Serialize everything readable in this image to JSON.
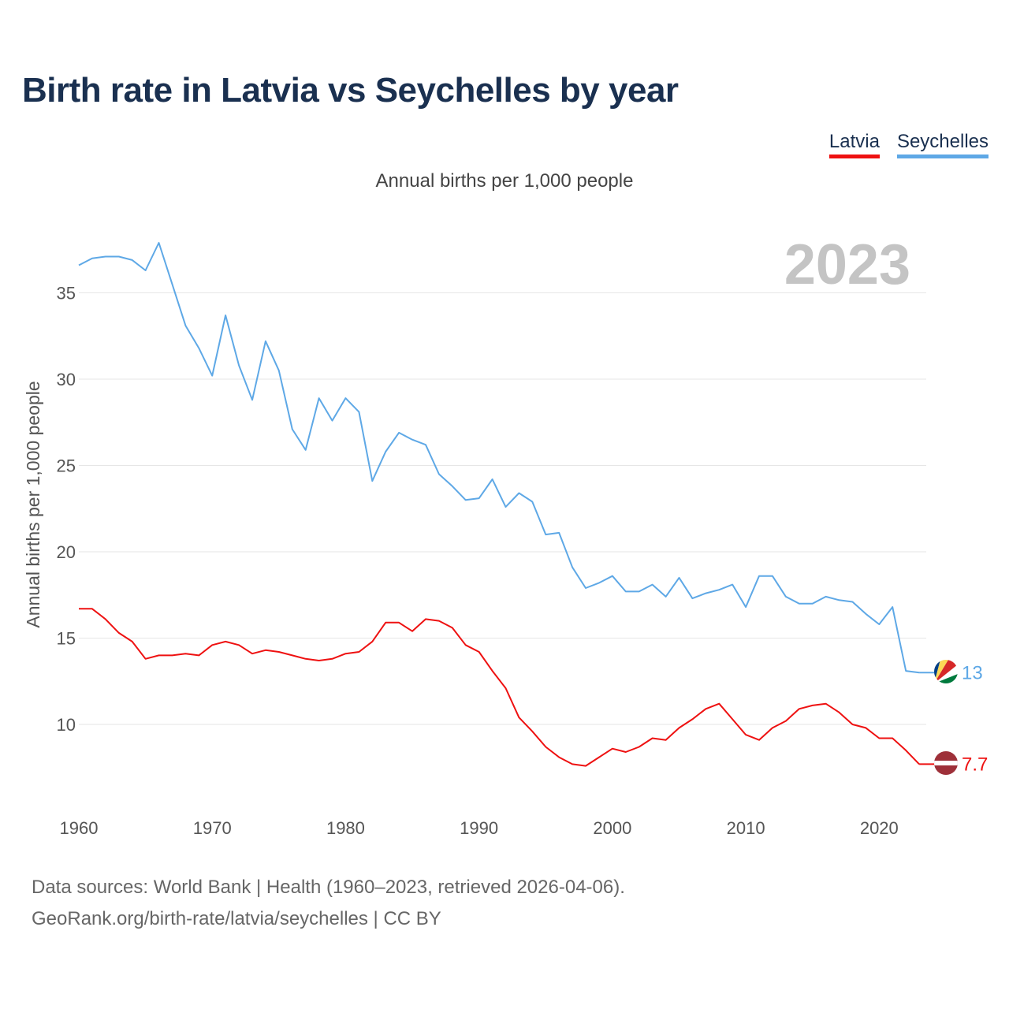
{
  "header": {
    "title": "Birth rate in Latvia vs Seychelles by year"
  },
  "legend": {
    "items": [
      {
        "label": "Latvia"
      },
      {
        "label": "Seychelles"
      }
    ]
  },
  "chart_data": {
    "type": "line",
    "title": "Birth rate in Latvia vs Seychelles by year",
    "subtitle": "Annual births per 1,000 people",
    "xlabel": "",
    "ylabel": "Annual births per 1,000 people",
    "xlim": [
      1960,
      2024
    ],
    "ylim": [
      7,
      38
    ],
    "x_ticks": [
      1960,
      1970,
      1980,
      1990,
      2000,
      2010,
      2020
    ],
    "y_ticks": [
      10,
      15,
      20,
      25,
      30,
      35
    ],
    "grid": true,
    "year_watermark": "2023",
    "x": [
      1960,
      1961,
      1962,
      1963,
      1964,
      1965,
      1966,
      1967,
      1968,
      1969,
      1970,
      1971,
      1972,
      1973,
      1974,
      1975,
      1976,
      1977,
      1978,
      1979,
      1980,
      1981,
      1982,
      1983,
      1984,
      1985,
      1986,
      1987,
      1988,
      1989,
      1990,
      1991,
      1992,
      1993,
      1994,
      1995,
      1996,
      1997,
      1998,
      1999,
      2000,
      2001,
      2002,
      2003,
      2004,
      2005,
      2006,
      2007,
      2008,
      2009,
      2010,
      2011,
      2012,
      2013,
      2014,
      2015,
      2016,
      2017,
      2018,
      2019,
      2020,
      2021,
      2022,
      2023
    ],
    "series": [
      {
        "name": "Latvia",
        "color": "#ee1111",
        "end_label": "7.7",
        "values": [
          16.7,
          16.7,
          16.1,
          15.3,
          14.8,
          13.8,
          14.0,
          14.0,
          14.1,
          14.0,
          14.6,
          14.8,
          14.6,
          14.1,
          14.3,
          14.2,
          14.0,
          13.8,
          13.7,
          13.8,
          14.1,
          14.2,
          14.8,
          15.9,
          15.9,
          15.4,
          16.1,
          16.0,
          15.6,
          14.6,
          14.2,
          13.1,
          12.1,
          10.4,
          9.6,
          8.7,
          8.1,
          7.7,
          7.6,
          8.1,
          8.6,
          8.4,
          8.7,
          9.2,
          9.1,
          9.8,
          10.3,
          10.9,
          11.2,
          10.3,
          9.4,
          9.1,
          9.8,
          10.2,
          10.9,
          11.1,
          11.2,
          10.7,
          10.0,
          9.8,
          9.2,
          9.2,
          8.5,
          7.7
        ]
      },
      {
        "name": "Seychelles",
        "color": "#5ea8e6",
        "end_label": "13",
        "values": [
          36.6,
          37.0,
          37.1,
          37.1,
          36.9,
          36.3,
          37.9,
          35.5,
          33.1,
          31.8,
          30.2,
          33.7,
          30.8,
          28.8,
          32.2,
          30.5,
          27.1,
          25.9,
          28.9,
          27.6,
          28.9,
          28.1,
          24.1,
          25.8,
          26.9,
          26.5,
          26.2,
          24.5,
          23.8,
          23.0,
          23.1,
          24.2,
          22.6,
          23.4,
          22.9,
          21.0,
          21.1,
          19.1,
          17.9,
          18.2,
          18.6,
          17.7,
          17.7,
          18.1,
          17.4,
          18.5,
          17.3,
          17.6,
          17.8,
          18.1,
          16.8,
          18.6,
          18.6,
          17.4,
          17.0,
          17.0,
          17.4,
          17.2,
          17.1,
          16.4,
          15.8,
          16.8,
          13.1,
          13.0
        ]
      }
    ]
  },
  "footer": {
    "line1": "Data sources: World Bank | Health (1960–2023, retrieved 2026-04-06).",
    "line2": "GeoRank.org/birth-rate/latvia/seychelles | CC BY"
  }
}
